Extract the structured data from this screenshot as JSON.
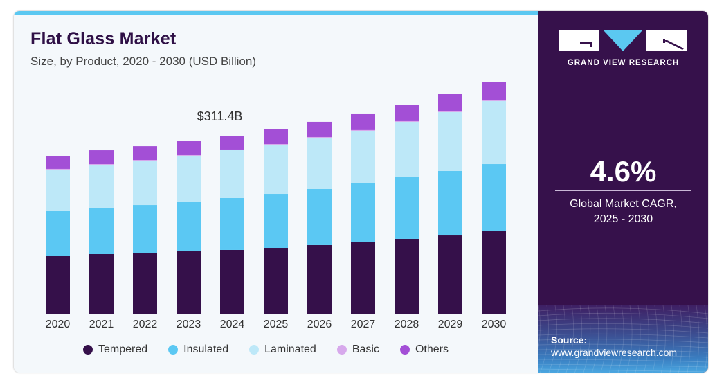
{
  "header": {
    "title": "Flat Glass Market",
    "subtitle": "Size, by Product, 2020 - 2030 (USD Billion)"
  },
  "brand": {
    "name": "GRAND VIEW RESEARCH",
    "logo_icon": "gvr-logo-icon"
  },
  "kpi": {
    "value": "4.6%",
    "label_line1": "Global Market CAGR,",
    "label_line2": "2025 - 2030"
  },
  "source": {
    "label": "Source:",
    "url": "www.grandviewresearch.com"
  },
  "colors": {
    "Tempered": "#35104a",
    "Insulated": "#5bc8f3",
    "Laminated": "#bde8f8",
    "Basic": "#d7a9ec",
    "Others": "#a34fd6",
    "accent": "#5bc8f1",
    "panel": "#36114b"
  },
  "chart_data": {
    "type": "bar",
    "stacked": true,
    "title": "Flat Glass Market",
    "subtitle": "Size, by Product, 2020 - 2030 (USD Billion)",
    "xlabel": "",
    "ylabel": "",
    "grid": false,
    "legend_position": "bottom",
    "categories": [
      "2020",
      "2021",
      "2022",
      "2023",
      "2024",
      "2025",
      "2026",
      "2027",
      "2028",
      "2029",
      "2030"
    ],
    "series": [
      {
        "name": "Tempered",
        "values": [
          100.6,
          104.2,
          106.6,
          109.1,
          111.5,
          115.1,
          120.0,
          124.8,
          130.9,
          136.9,
          144.2
        ]
      },
      {
        "name": "Insulated",
        "values": [
          78.8,
          81.2,
          83.6,
          87.2,
          90.9,
          94.5,
          98.1,
          103.0,
          107.8,
          112.7,
          117.5
        ]
      },
      {
        "name": "Laminated",
        "values": [
          72.7,
          75.1,
          77.5,
          80.0,
          83.6,
          86.0,
          89.7,
          92.1,
          96.9,
          103.0,
          110.3
        ]
      },
      {
        "name": "Basic",
        "values": [
          1.2,
          1.2,
          1.2,
          1.2,
          1.2,
          1.2,
          1.2,
          1.3,
          1.3,
          1.3,
          1.3
        ]
      },
      {
        "name": "Others",
        "values": [
          21.8,
          24.2,
          24.2,
          24.2,
          24.2,
          25.5,
          26.7,
          29.0,
          29.0,
          30.2,
          31.4
        ]
      }
    ],
    "annotations": [
      {
        "category": "2024",
        "text": "$311.4B"
      }
    ],
    "ylim": [
      0,
      420
    ]
  }
}
